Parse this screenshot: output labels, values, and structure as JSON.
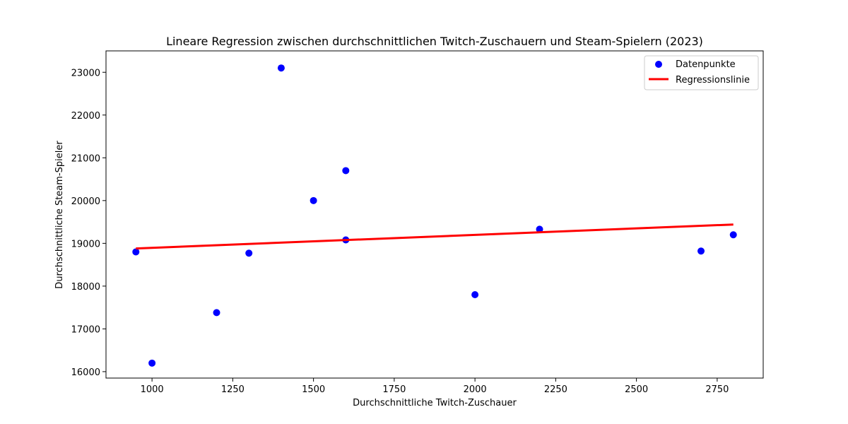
{
  "chart_data": {
    "type": "scatter",
    "title": "Lineare Regression zwischen durchschnittlichen Twitch-Zuschauern und Steam-Spielern (2023)",
    "xlabel": "Durchschnittliche Twitch-Zuschauer",
    "ylabel": "Durchschnittliche Steam-Spieler",
    "xlim": [
      857.5,
      2892.5
    ],
    "ylim": [
      15850,
      23500
    ],
    "xticks": [
      1000,
      1250,
      1500,
      1750,
      2000,
      2250,
      2500,
      2750
    ],
    "yticks": [
      16000,
      17000,
      18000,
      19000,
      20000,
      21000,
      22000,
      23000
    ],
    "grid": false,
    "legend_position": "top-right",
    "series": [
      {
        "name": "Datenpunkte",
        "kind": "scatter",
        "color": "#0000ff",
        "points": [
          {
            "x": 950,
            "y": 18800
          },
          {
            "x": 1000,
            "y": 16200
          },
          {
            "x": 1200,
            "y": 17380
          },
          {
            "x": 1300,
            "y": 18770
          },
          {
            "x": 1400,
            "y": 23100
          },
          {
            "x": 1500,
            "y": 20000
          },
          {
            "x": 1600,
            "y": 20700
          },
          {
            "x": 1600,
            "y": 19080
          },
          {
            "x": 2000,
            "y": 17800
          },
          {
            "x": 2200,
            "y": 19330
          },
          {
            "x": 2700,
            "y": 18820
          },
          {
            "x": 2800,
            "y": 19200
          }
        ]
      },
      {
        "name": "Regressionslinie",
        "kind": "line",
        "color": "#ff0000",
        "points": [
          {
            "x": 950,
            "y": 18880
          },
          {
            "x": 2800,
            "y": 19440
          }
        ]
      }
    ]
  }
}
